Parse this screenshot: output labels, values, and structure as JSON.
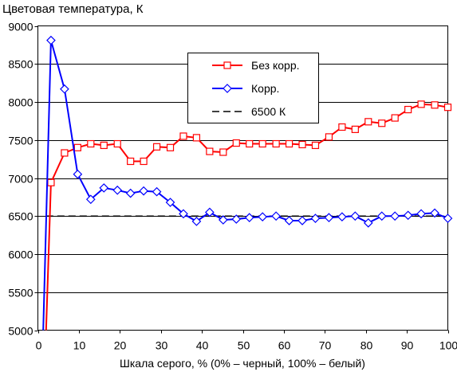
{
  "chart_data": {
    "type": "line",
    "title": "Цветовая температура, К",
    "xlabel": "Шкала серого, % (0% – черный, 100% – белый)",
    "ylabel": "",
    "xlim": [
      0,
      100
    ],
    "ylim": [
      5000,
      9000
    ],
    "xticks": [
      0,
      10,
      20,
      30,
      40,
      50,
      60,
      70,
      80,
      90,
      100
    ],
    "yticks": [
      5000,
      5500,
      6000,
      6500,
      7000,
      7500,
      8000,
      8500,
      9000
    ],
    "grid": "horizontal",
    "legend_position": "top-right",
    "colors": {
      "uncorrected": "#ff0000",
      "corrected": "#0000ff",
      "reference": "#000000"
    },
    "series": [
      {
        "name": "Без корр.",
        "marker": "square",
        "x": [
          2,
          3.2,
          6.5,
          9.7,
          12.9,
          16.1,
          19.4,
          22.6,
          25.8,
          29,
          32.3,
          35.5,
          38.7,
          41.9,
          45.2,
          48.4,
          51.6,
          54.8,
          58.1,
          61.3,
          64.5,
          67.7,
          71,
          74.2,
          77.4,
          80.6,
          83.9,
          87.1,
          90.3,
          93.5,
          96.8,
          100
        ],
        "y": [
          5000,
          6940,
          7330,
          7400,
          7450,
          7430,
          7450,
          7220,
          7220,
          7410,
          7400,
          7550,
          7530,
          7350,
          7340,
          7460,
          7450,
          7450,
          7450,
          7450,
          7440,
          7430,
          7540,
          7670,
          7640,
          7740,
          7720,
          7790,
          7900,
          7970,
          7960,
          7930
        ]
      },
      {
        "name": "Корр.",
        "marker": "diamond",
        "x": [
          1.3,
          3.2,
          6.5,
          9.7,
          12.9,
          16.1,
          19.4,
          22.6,
          25.8,
          29,
          32.3,
          35.5,
          38.7,
          41.9,
          45.2,
          48.4,
          51.6,
          54.8,
          58.1,
          61.3,
          64.5,
          67.7,
          71,
          74.2,
          77.4,
          80.6,
          83.9,
          87.1,
          90.3,
          93.5,
          96.8,
          100
        ],
        "y": [
          5000,
          8810,
          8170,
          7050,
          6720,
          6870,
          6840,
          6800,
          6830,
          6820,
          6680,
          6530,
          6430,
          6550,
          6450,
          6460,
          6480,
          6490,
          6500,
          6440,
          6440,
          6470,
          6480,
          6490,
          6500,
          6410,
          6500,
          6500,
          6510,
          6530,
          6540,
          6470
        ]
      },
      {
        "name": "6500 К",
        "marker": "none",
        "dash": true,
        "x": [
          2,
          100
        ],
        "y": [
          6500,
          6500
        ]
      }
    ]
  }
}
